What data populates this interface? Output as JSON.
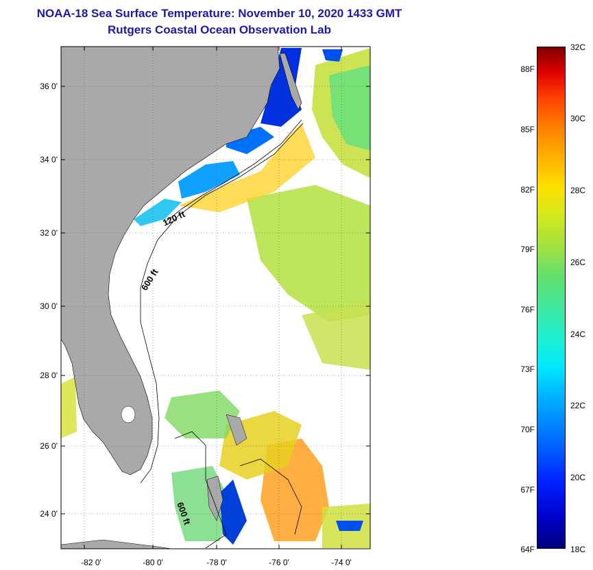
{
  "header": {
    "title": "NOAA-18 Sea Surface Temperature:  November 10, 2020 1433 GMT",
    "subtitle": "Rutgers Coastal Ocean Observation Lab"
  },
  "axes": {
    "lat_labels": [
      "36 0'",
      "34 0'",
      "32 0'",
      "30 0'",
      "28 0'",
      "26 0'",
      "24 0'"
    ],
    "lon_labels": [
      "-82 0'",
      "-80 0'",
      "-78 0'",
      "-76 0'",
      "-74 0'"
    ]
  },
  "contours": {
    "label_120": "120 ft",
    "label_600_north": "600 ft",
    "label_600_south": "600 ft"
  },
  "colorbar": {
    "fahrenheit": [
      "88F",
      "85F",
      "82F",
      "79F",
      "76F",
      "73F",
      "70F",
      "67F",
      "64F"
    ],
    "celsius": [
      "32C",
      "30C",
      "28C",
      "26C",
      "24C",
      "22C",
      "20C",
      "18C"
    ]
  },
  "colors": {
    "title": "#1a1aa8",
    "land": "#a9a9a9",
    "cloud": "#ffffff"
  }
}
